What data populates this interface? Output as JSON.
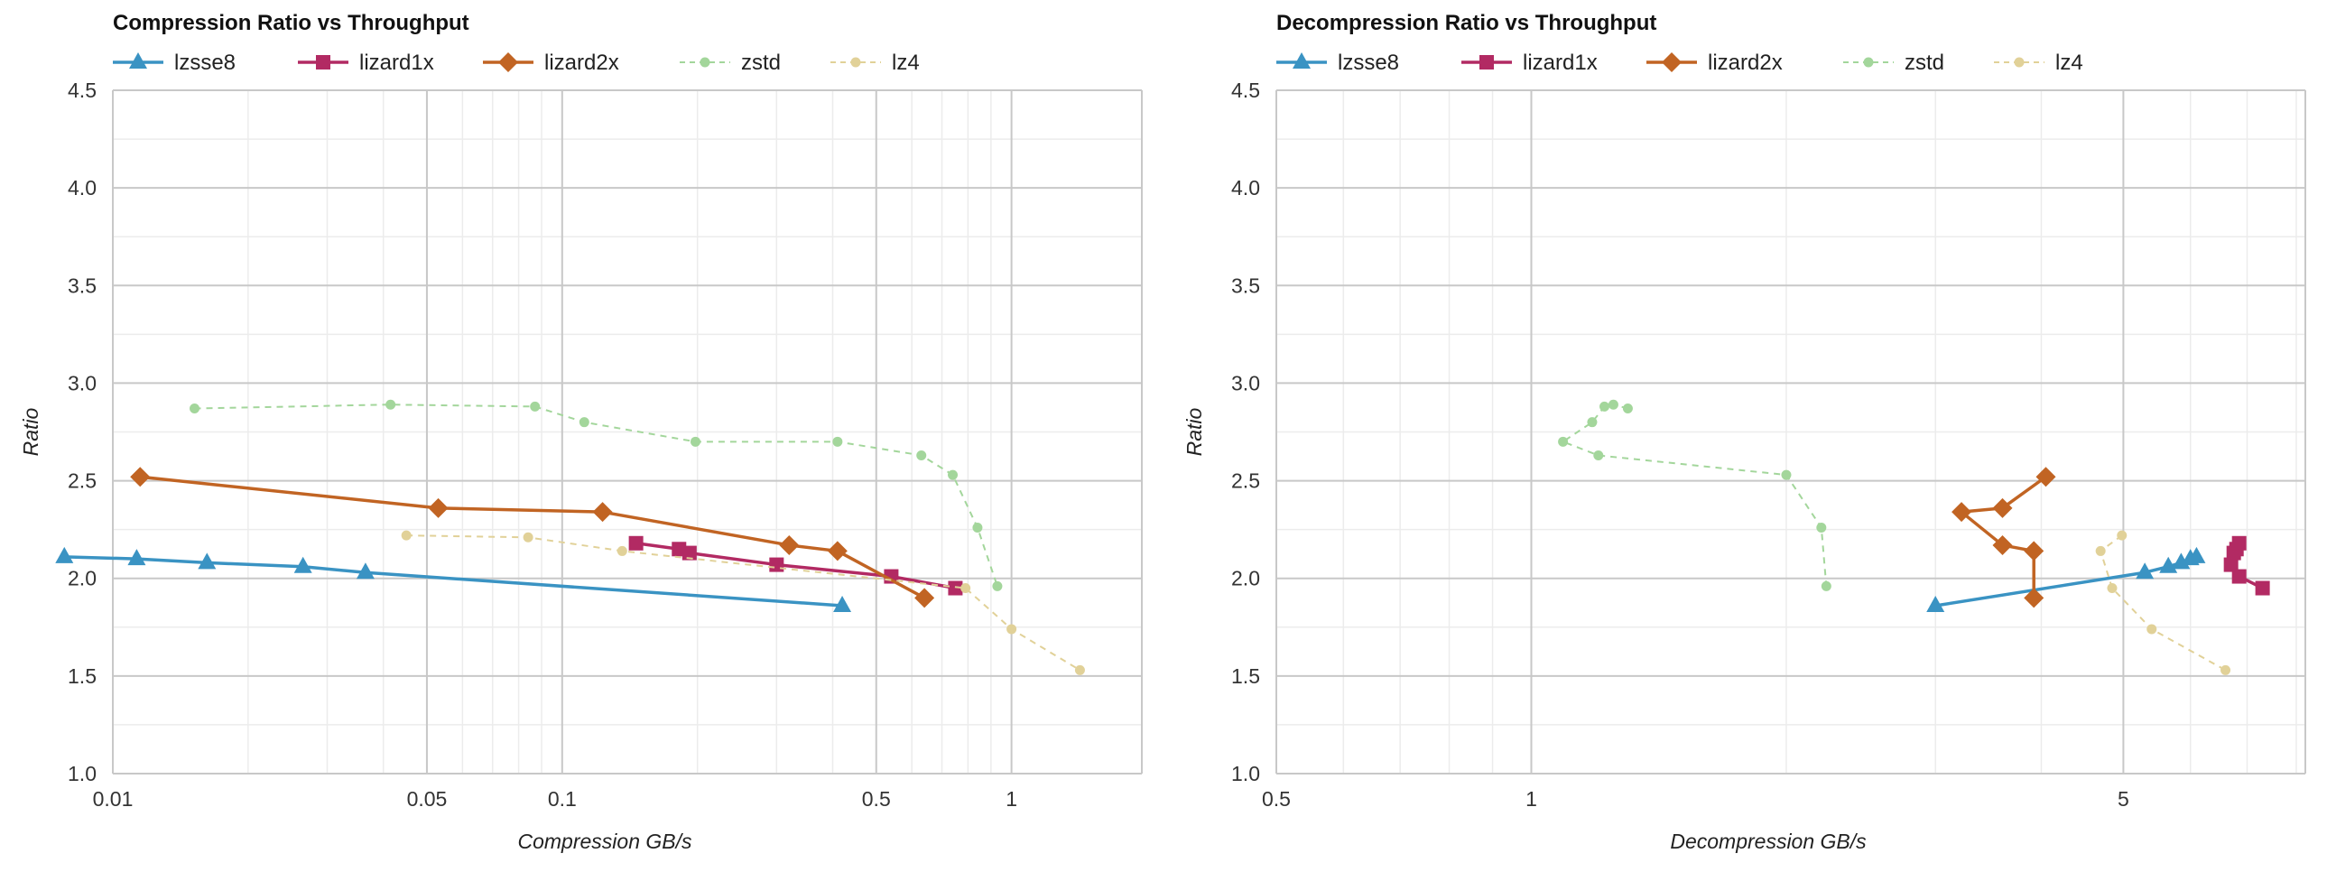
{
  "chart_data": [
    {
      "type": "line",
      "title": "Compression Ratio vs Throughput",
      "xlabel": "Compression GB/s",
      "ylabel": "Ratio",
      "x_scale": "log",
      "xlim": [
        0.01,
        1.95
      ],
      "ylim": [
        1.0,
        4.5
      ],
      "x_ticks": [
        0.01,
        0.05,
        0.1,
        0.5,
        1
      ],
      "x_tick_labels": [
        "0.01",
        "0.05",
        "0.1",
        "0.5",
        "1"
      ],
      "y_ticks": [
        1.0,
        1.5,
        2.0,
        2.5,
        3.0,
        3.5,
        4.0,
        4.5
      ],
      "y_tick_labels": [
        "1.0",
        "1.5",
        "2.0",
        "2.5",
        "3.0",
        "3.5",
        "4.0",
        "4.5"
      ],
      "grid": true,
      "legend": "top-left",
      "series": [
        {
          "name": "lzsse8",
          "color": "#3a93c3",
          "marker": "triangle",
          "dashed": false,
          "x": [
            0.0078,
            0.0113,
            0.0162,
            0.0265,
            0.0365,
            0.42
          ],
          "y": [
            2.11,
            2.1,
            2.08,
            2.06,
            2.03,
            1.86
          ]
        },
        {
          "name": "lizard1x",
          "color": "#b22a63",
          "marker": "square",
          "dashed": false,
          "x": [
            0.146,
            0.182,
            0.192,
            0.3,
            0.54,
            0.75
          ],
          "y": [
            2.18,
            2.15,
            2.13,
            2.07,
            2.01,
            1.95
          ]
        },
        {
          "name": "lizard2x",
          "color": "#c16423",
          "marker": "diamond",
          "dashed": false,
          "x": [
            0.0115,
            0.053,
            0.123,
            0.32,
            0.41,
            0.64
          ],
          "y": [
            2.52,
            2.36,
            2.34,
            2.17,
            2.14,
            1.9
          ]
        },
        {
          "name": "zstd",
          "color": "#a3d69b",
          "marker": "circle",
          "dashed": true,
          "x": [
            0.0152,
            0.0415,
            0.087,
            0.112,
            0.198,
            0.41,
            0.63,
            0.74,
            0.84,
            0.93
          ],
          "y": [
            2.87,
            2.89,
            2.88,
            2.8,
            2.7,
            2.7,
            2.63,
            2.53,
            2.26,
            1.96
          ]
        },
        {
          "name": "lz4",
          "color": "#e1d198",
          "marker": "circle",
          "dashed": true,
          "x": [
            0.045,
            0.084,
            0.136,
            0.79,
            1.0,
            1.42
          ],
          "y": [
            2.22,
            2.21,
            2.14,
            1.95,
            1.74,
            1.53
          ]
        }
      ]
    },
    {
      "type": "line",
      "title": "Decompression Ratio vs Throughput",
      "xlabel": "Decompression GB/s",
      "ylabel": "Ratio",
      "x_scale": "log",
      "xlim": [
        0.5,
        8.2
      ],
      "ylim": [
        1.0,
        4.5
      ],
      "x_ticks": [
        0.5,
        1,
        5
      ],
      "x_tick_labels": [
        "0.5",
        "1",
        "5"
      ],
      "y_ticks": [
        1.0,
        1.5,
        2.0,
        2.5,
        3.0,
        3.5,
        4.0,
        4.5
      ],
      "y_tick_labels": [
        "1.0",
        "1.5",
        "2.0",
        "2.5",
        "3.0",
        "3.5",
        "4.0",
        "4.5"
      ],
      "grid": true,
      "legend": "top-left",
      "series": [
        {
          "name": "lzsse8",
          "color": "#3a93c3",
          "marker": "triangle",
          "dashed": false,
          "x": [
            3.0,
            5.3,
            5.65,
            5.85,
            6.0,
            6.1
          ],
          "y": [
            1.86,
            2.03,
            2.06,
            2.08,
            2.1,
            2.11
          ]
        },
        {
          "name": "lizard1x",
          "color": "#b22a63",
          "marker": "square",
          "dashed": false,
          "x": [
            7.3,
            6.85,
            6.7,
            6.75,
            6.8,
            6.85
          ],
          "y": [
            1.95,
            2.01,
            2.07,
            2.13,
            2.15,
            2.18
          ]
        },
        {
          "name": "lizard2x",
          "color": "#c16423",
          "marker": "diamond",
          "dashed": false,
          "x": [
            4.05,
            3.6,
            3.22,
            3.6,
            3.92,
            3.92
          ],
          "y": [
            2.52,
            2.36,
            2.34,
            2.17,
            2.14,
            1.9
          ]
        },
        {
          "name": "zstd",
          "color": "#a3d69b",
          "marker": "circle",
          "dashed": true,
          "x": [
            1.3,
            1.25,
            1.22,
            1.18,
            1.09,
            1.2,
            2.0,
            2.2,
            2.23
          ],
          "y": [
            2.87,
            2.89,
            2.88,
            2.8,
            2.7,
            2.63,
            2.53,
            2.26,
            1.96
          ]
        },
        {
          "name": "lz4",
          "color": "#e1d198",
          "marker": "circle",
          "dashed": true,
          "x": [
            4.98,
            4.7,
            4.85,
            5.4,
            6.6
          ],
          "y": [
            2.22,
            2.14,
            1.95,
            1.74,
            1.53
          ]
        }
      ]
    }
  ]
}
